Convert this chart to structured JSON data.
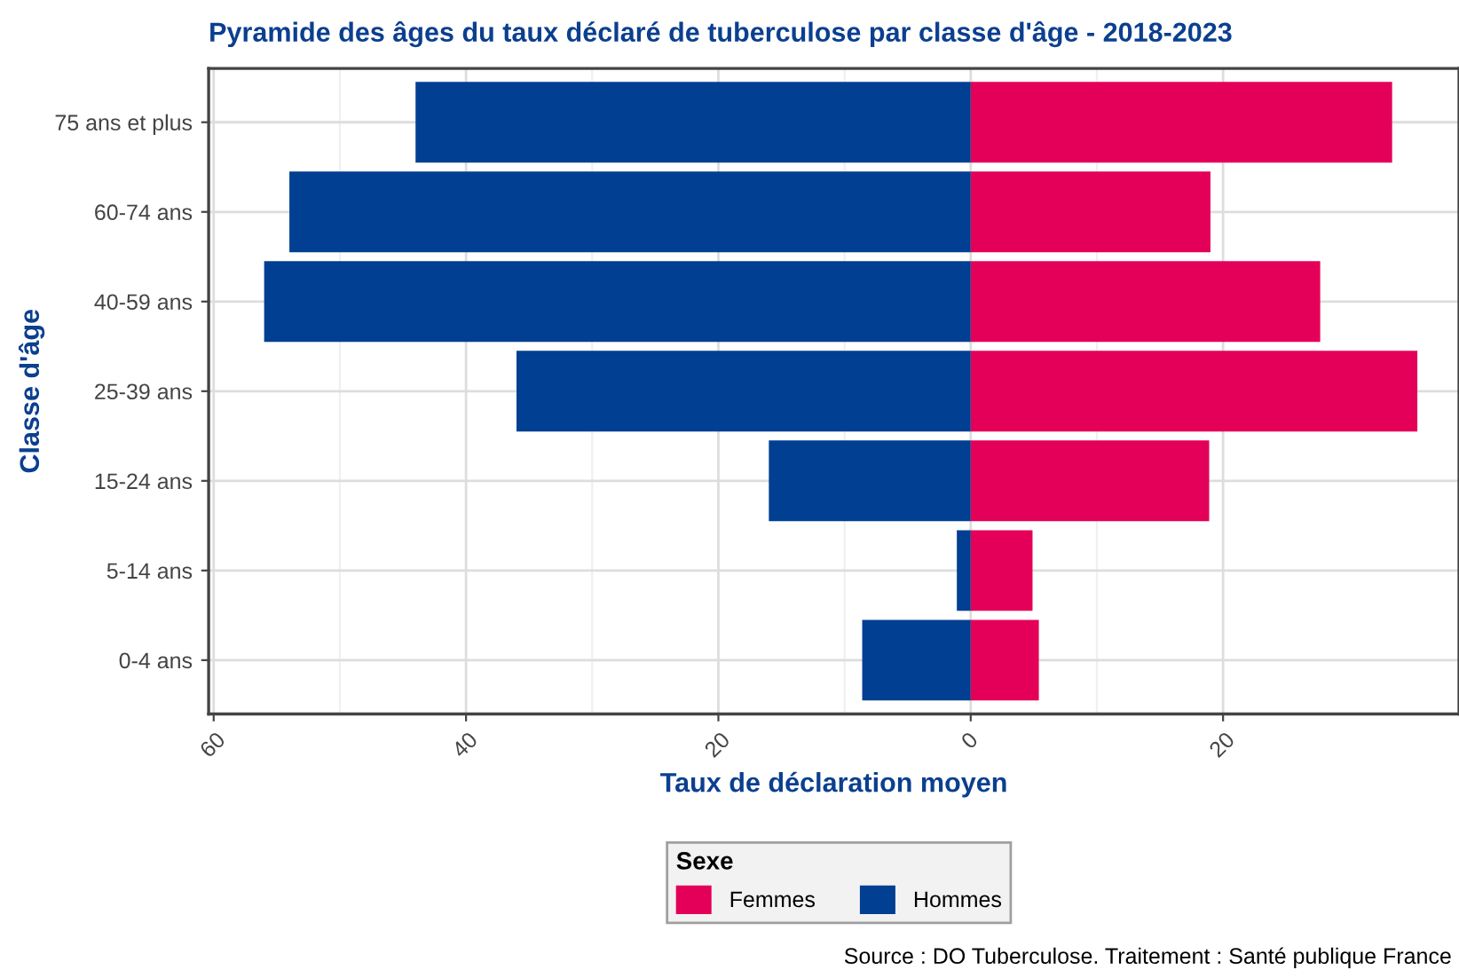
{
  "chart_data": {
    "type": "bar",
    "orientation": "horizontal",
    "title": "Pyramide des âges du taux déclaré de tuberculose par classe d'âge - 2018-2023",
    "xlabel": "Taux de déclaration moyen",
    "ylabel": "Classe d'âge",
    "legend_title": "Sexe",
    "categories": [
      "75 ans et plus",
      "60-74 ans",
      "40-59 ans",
      "25-39 ans",
      "15-24 ans",
      "5-14 ans",
      "0-4 ans"
    ],
    "series": [
      {
        "name": "Femmes",
        "color": "#e40058",
        "values": [
          33.4,
          19.0,
          27.7,
          35.4,
          18.9,
          4.9,
          5.4
        ]
      },
      {
        "name": "Hommes",
        "color": "#003f91",
        "values": [
          -44,
          -54,
          -56,
          -36,
          -16,
          -1.1,
          -8.6
        ]
      }
    ],
    "xlim": [
      -60.4,
      38.7
    ],
    "xticks": [
      {
        "value": -60,
        "label": "60"
      },
      {
        "value": -40,
        "label": "40"
      },
      {
        "value": -20,
        "label": "20"
      },
      0,
      20
    ],
    "grid": true,
    "legend": "bottom",
    "stacked": true,
    "annotations": [
      "Source : DO Tuberculose. Traitement : Santé publique France"
    ]
  }
}
